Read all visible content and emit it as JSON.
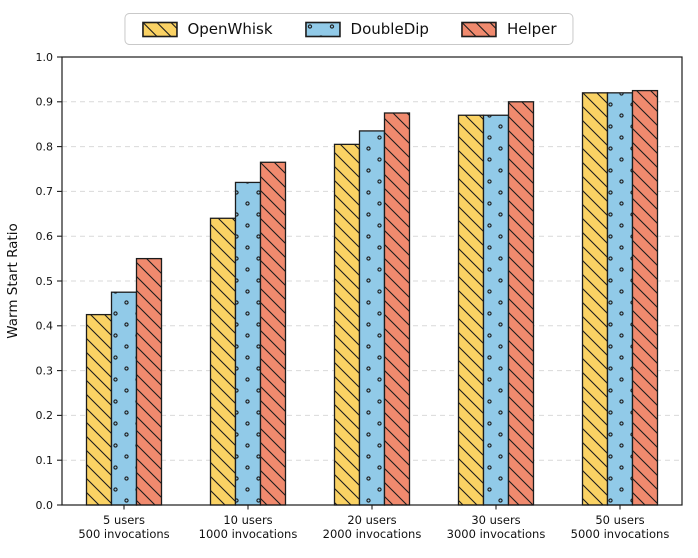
{
  "chart_data": {
    "type": "bar",
    "title": "",
    "xlabel": "",
    "ylabel": "Warm Start Ratio",
    "ylim": [
      0.0,
      1.0
    ],
    "yticks": [
      "0.0",
      "0.1",
      "0.2",
      "0.3",
      "0.4",
      "0.5",
      "0.6",
      "0.7",
      "0.8",
      "0.9",
      "1.0"
    ],
    "grid": {
      "axis": "y",
      "style": "dashed",
      "color": "#d9d9d9"
    },
    "legend_position": "top center outside",
    "edge_color": "#1c1c1c",
    "categories": [
      {
        "line1": "5 users",
        "line2": "500 invocations"
      },
      {
        "line1": "10 users",
        "line2": "1000 invocations"
      },
      {
        "line1": "20 users",
        "line2": "2000 invocations"
      },
      {
        "line1": "30 users",
        "line2": "3000 invocations"
      },
      {
        "line1": "50 users",
        "line2": "5000 invocations"
      }
    ],
    "series": [
      {
        "name": "OpenWhisk",
        "color": "#FAD264",
        "hatch": "\\",
        "values": [
          0.425,
          0.64,
          0.805,
          0.87,
          0.92
        ]
      },
      {
        "name": "DoubleDip",
        "color": "#91CAE8",
        "hatch": "o",
        "values": [
          0.475,
          0.72,
          0.835,
          0.87,
          0.92
        ]
      },
      {
        "name": "Helper",
        "color": "#F08A6E",
        "hatch": "\\",
        "values": [
          0.55,
          0.765,
          0.875,
          0.9,
          0.925
        ]
      }
    ]
  }
}
